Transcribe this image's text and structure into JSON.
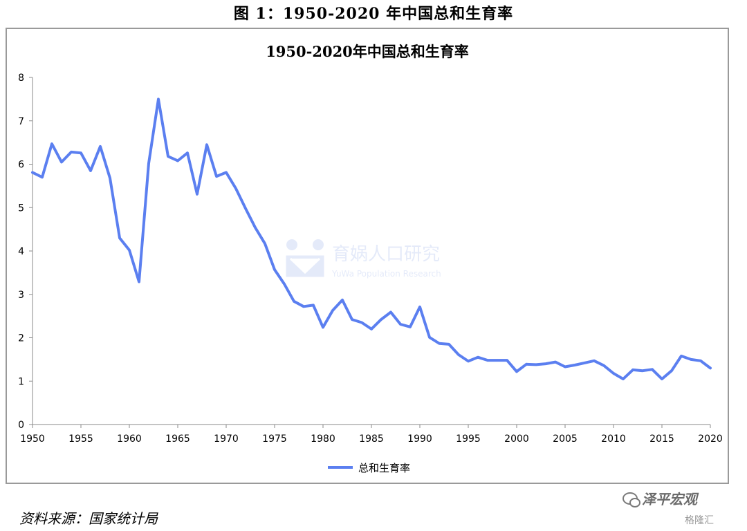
{
  "figure_caption": "图 1：1950-2020 年中国总和生育率",
  "source_note": "资料来源：国家统计局",
  "credit": {
    "name": "泽平宏观",
    "sub": "格隆汇"
  },
  "watermark": {
    "cn": "育娲人口研究",
    "en": "YuWa Population Research"
  },
  "colors": {
    "line": "#5b7ff0",
    "axis": "#8a8a8a"
  },
  "chart_data": {
    "type": "line",
    "title": "1950-2020年中国总和生育率",
    "xlabel": "",
    "ylabel": "",
    "xlim": [
      1950,
      2020
    ],
    "ylim": [
      0,
      8
    ],
    "xticks": [
      1950,
      1955,
      1960,
      1965,
      1970,
      1975,
      1980,
      1985,
      1990,
      1995,
      2000,
      2005,
      2010,
      2015,
      2020
    ],
    "yticks": [
      0,
      1,
      2,
      3,
      4,
      5,
      6,
      7,
      8
    ],
    "grid": false,
    "legend_position": "bottom-center",
    "series": [
      {
        "name": "总和生育率",
        "x": [
          1950,
          1951,
          1952,
          1953,
          1954,
          1955,
          1956,
          1957,
          1958,
          1959,
          1960,
          1961,
          1962,
          1963,
          1964,
          1965,
          1966,
          1967,
          1968,
          1969,
          1970,
          1971,
          1972,
          1973,
          1974,
          1975,
          1976,
          1977,
          1978,
          1979,
          1980,
          1981,
          1982,
          1983,
          1984,
          1985,
          1986,
          1987,
          1988,
          1989,
          1990,
          1991,
          1992,
          1993,
          1994,
          1995,
          1996,
          1997,
          1998,
          1999,
          2000,
          2001,
          2002,
          2003,
          2004,
          2005,
          2006,
          2007,
          2008,
          2009,
          2010,
          2011,
          2012,
          2013,
          2014,
          2015,
          2016,
          2017,
          2018,
          2019,
          2020
        ],
        "values": [
          5.81,
          5.7,
          6.47,
          6.05,
          6.28,
          6.26,
          5.85,
          6.41,
          5.68,
          4.3,
          4.02,
          3.29,
          6.02,
          7.5,
          6.18,
          6.08,
          6.26,
          5.31,
          6.45,
          5.72,
          5.81,
          5.44,
          4.98,
          4.54,
          4.17,
          3.57,
          3.24,
          2.84,
          2.72,
          2.75,
          2.24,
          2.63,
          2.87,
          2.42,
          2.35,
          2.2,
          2.42,
          2.59,
          2.31,
          2.25,
          2.71,
          2.01,
          1.87,
          1.85,
          1.61,
          1.46,
          1.55,
          1.48,
          1.48,
          1.48,
          1.22,
          1.39,
          1.38,
          1.4,
          1.44,
          1.33,
          1.37,
          1.42,
          1.47,
          1.36,
          1.18,
          1.05,
          1.26,
          1.24,
          1.27,
          1.05,
          1.24,
          1.58,
          1.5,
          1.47,
          1.3
        ]
      }
    ]
  }
}
